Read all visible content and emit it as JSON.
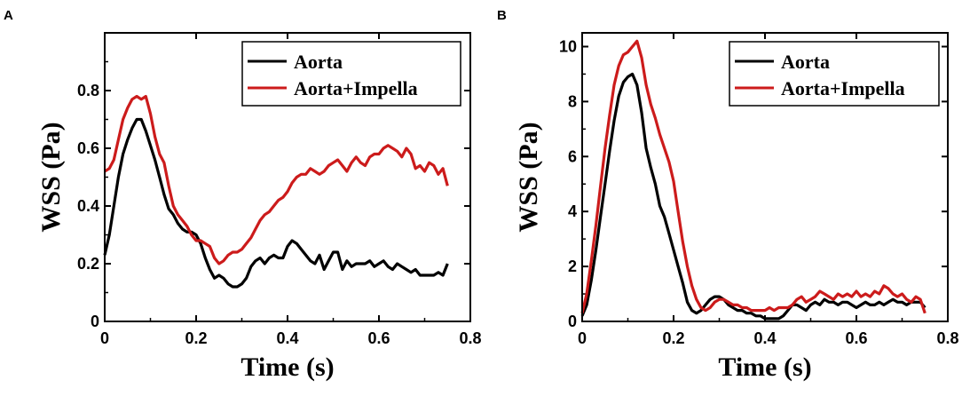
{
  "chart_data": [
    {
      "type": "line",
      "panel_label": "A",
      "xlabel": "Time (s)",
      "ylabel": "WSS (Pa)",
      "xlim": [
        0,
        0.8
      ],
      "ylim": [
        0,
        1.0
      ],
      "xticks": [
        0,
        0.2,
        0.4,
        0.6,
        0.8
      ],
      "xtick_labels": [
        "0",
        "0.2",
        "0.4",
        "0.6",
        "0.8"
      ],
      "yticks": [
        0,
        0.2,
        0.4,
        0.6,
        0.8
      ],
      "ytick_labels": [
        "0",
        "0.2",
        "0.4",
        "0.6",
        "0.8"
      ],
      "legend_position": "top-right",
      "series": [
        {
          "name": "Aorta",
          "color": "#000000",
          "x": [
            0,
            0.01,
            0.02,
            0.03,
            0.04,
            0.05,
            0.06,
            0.07,
            0.08,
            0.09,
            0.1,
            0.11,
            0.12,
            0.13,
            0.14,
            0.15,
            0.16,
            0.17,
            0.18,
            0.19,
            0.2,
            0.21,
            0.22,
            0.23,
            0.24,
            0.25,
            0.26,
            0.27,
            0.28,
            0.29,
            0.3,
            0.31,
            0.32,
            0.33,
            0.34,
            0.35,
            0.36,
            0.37,
            0.38,
            0.39,
            0.4,
            0.41,
            0.42,
            0.43,
            0.44,
            0.45,
            0.46,
            0.47,
            0.48,
            0.49,
            0.5,
            0.51,
            0.52,
            0.53,
            0.54,
            0.55,
            0.56,
            0.57,
            0.58,
            0.59,
            0.6,
            0.61,
            0.62,
            0.63,
            0.64,
            0.65,
            0.66,
            0.67,
            0.68,
            0.69,
            0.7,
            0.71,
            0.72,
            0.73,
            0.74,
            0.75
          ],
          "y": [
            0.23,
            0.3,
            0.4,
            0.5,
            0.58,
            0.63,
            0.67,
            0.7,
            0.7,
            0.66,
            0.61,
            0.56,
            0.5,
            0.44,
            0.39,
            0.37,
            0.34,
            0.32,
            0.31,
            0.31,
            0.3,
            0.27,
            0.22,
            0.18,
            0.15,
            0.16,
            0.15,
            0.13,
            0.12,
            0.12,
            0.13,
            0.15,
            0.19,
            0.21,
            0.22,
            0.2,
            0.22,
            0.23,
            0.22,
            0.22,
            0.26,
            0.28,
            0.27,
            0.25,
            0.23,
            0.21,
            0.2,
            0.23,
            0.18,
            0.21,
            0.24,
            0.24,
            0.18,
            0.21,
            0.19,
            0.2,
            0.2,
            0.2,
            0.21,
            0.19,
            0.2,
            0.21,
            0.19,
            0.18,
            0.2,
            0.19,
            0.18,
            0.17,
            0.18,
            0.16,
            0.16,
            0.16,
            0.16,
            0.17,
            0.16,
            0.2
          ]
        },
        {
          "name": "Aorta+Impella",
          "color": "#cc1b1b",
          "x": [
            0,
            0.01,
            0.02,
            0.03,
            0.04,
            0.05,
            0.06,
            0.07,
            0.08,
            0.09,
            0.1,
            0.11,
            0.12,
            0.13,
            0.14,
            0.15,
            0.16,
            0.17,
            0.18,
            0.19,
            0.2,
            0.21,
            0.22,
            0.23,
            0.24,
            0.25,
            0.26,
            0.27,
            0.28,
            0.29,
            0.3,
            0.31,
            0.32,
            0.33,
            0.34,
            0.35,
            0.36,
            0.37,
            0.38,
            0.39,
            0.4,
            0.41,
            0.42,
            0.43,
            0.44,
            0.45,
            0.46,
            0.47,
            0.48,
            0.49,
            0.5,
            0.51,
            0.52,
            0.53,
            0.54,
            0.55,
            0.56,
            0.57,
            0.58,
            0.59,
            0.6,
            0.61,
            0.62,
            0.63,
            0.64,
            0.65,
            0.66,
            0.67,
            0.68,
            0.69,
            0.7,
            0.71,
            0.72,
            0.73,
            0.74,
            0.75
          ],
          "y": [
            0.52,
            0.53,
            0.56,
            0.63,
            0.7,
            0.74,
            0.77,
            0.78,
            0.77,
            0.78,
            0.72,
            0.64,
            0.58,
            0.55,
            0.47,
            0.4,
            0.37,
            0.35,
            0.33,
            0.3,
            0.28,
            0.28,
            0.27,
            0.26,
            0.22,
            0.2,
            0.21,
            0.23,
            0.24,
            0.24,
            0.25,
            0.27,
            0.29,
            0.32,
            0.35,
            0.37,
            0.38,
            0.4,
            0.42,
            0.43,
            0.45,
            0.48,
            0.5,
            0.51,
            0.51,
            0.53,
            0.52,
            0.51,
            0.52,
            0.54,
            0.55,
            0.56,
            0.54,
            0.52,
            0.55,
            0.57,
            0.55,
            0.54,
            0.57,
            0.58,
            0.58,
            0.6,
            0.61,
            0.6,
            0.59,
            0.57,
            0.6,
            0.58,
            0.53,
            0.54,
            0.52,
            0.55,
            0.54,
            0.51,
            0.53,
            0.47
          ]
        }
      ]
    },
    {
      "type": "line",
      "panel_label": "B",
      "xlabel": "Time (s)",
      "ylabel": "WSS (Pa)",
      "xlim": [
        0,
        0.8
      ],
      "ylim": [
        0,
        10.5
      ],
      "xticks": [
        0,
        0.2,
        0.4,
        0.6,
        0.8
      ],
      "xtick_labels": [
        "0",
        "0.2",
        "0.4",
        "0.6",
        "0.8"
      ],
      "yticks": [
        0,
        2,
        4,
        6,
        8,
        10
      ],
      "ytick_labels": [
        "0",
        "2",
        "4",
        "6",
        "8",
        "10"
      ],
      "legend_position": "top-right",
      "series": [
        {
          "name": "Aorta",
          "color": "#000000",
          "x": [
            0,
            0.01,
            0.02,
            0.03,
            0.04,
            0.05,
            0.06,
            0.07,
            0.08,
            0.09,
            0.1,
            0.11,
            0.12,
            0.13,
            0.14,
            0.15,
            0.16,
            0.17,
            0.18,
            0.19,
            0.2,
            0.21,
            0.22,
            0.23,
            0.24,
            0.25,
            0.26,
            0.27,
            0.28,
            0.29,
            0.3,
            0.31,
            0.32,
            0.33,
            0.34,
            0.35,
            0.36,
            0.37,
            0.38,
            0.39,
            0.4,
            0.41,
            0.42,
            0.43,
            0.44,
            0.45,
            0.46,
            0.47,
            0.48,
            0.49,
            0.5,
            0.51,
            0.52,
            0.53,
            0.54,
            0.55,
            0.56,
            0.57,
            0.58,
            0.59,
            0.6,
            0.61,
            0.62,
            0.63,
            0.64,
            0.65,
            0.66,
            0.67,
            0.68,
            0.69,
            0.7,
            0.71,
            0.72,
            0.73,
            0.74,
            0.75
          ],
          "y": [
            0.2,
            0.6,
            1.5,
            2.6,
            3.8,
            5.0,
            6.2,
            7.3,
            8.2,
            8.7,
            8.9,
            9.0,
            8.6,
            7.6,
            6.3,
            5.6,
            5.0,
            4.2,
            3.8,
            3.2,
            2.6,
            2.0,
            1.4,
            0.7,
            0.4,
            0.3,
            0.4,
            0.6,
            0.8,
            0.9,
            0.9,
            0.8,
            0.6,
            0.5,
            0.4,
            0.4,
            0.3,
            0.3,
            0.2,
            0.2,
            0.1,
            0.1,
            0.1,
            0.1,
            0.2,
            0.4,
            0.6,
            0.6,
            0.5,
            0.4,
            0.6,
            0.7,
            0.6,
            0.8,
            0.7,
            0.7,
            0.6,
            0.7,
            0.7,
            0.6,
            0.5,
            0.6,
            0.7,
            0.6,
            0.6,
            0.7,
            0.6,
            0.7,
            0.8,
            0.7,
            0.7,
            0.6,
            0.7,
            0.7,
            0.7,
            0.5
          ]
        },
        {
          "name": "Aorta+Impella",
          "color": "#cc1b1b",
          "x": [
            0,
            0.01,
            0.02,
            0.03,
            0.04,
            0.05,
            0.06,
            0.07,
            0.08,
            0.09,
            0.1,
            0.11,
            0.12,
            0.13,
            0.14,
            0.15,
            0.16,
            0.17,
            0.18,
            0.19,
            0.2,
            0.21,
            0.22,
            0.23,
            0.24,
            0.25,
            0.26,
            0.27,
            0.28,
            0.29,
            0.3,
            0.31,
            0.32,
            0.33,
            0.34,
            0.35,
            0.36,
            0.37,
            0.38,
            0.39,
            0.4,
            0.41,
            0.42,
            0.43,
            0.44,
            0.45,
            0.46,
            0.47,
            0.48,
            0.49,
            0.5,
            0.51,
            0.52,
            0.53,
            0.54,
            0.55,
            0.56,
            0.57,
            0.58,
            0.59,
            0.6,
            0.61,
            0.62,
            0.63,
            0.64,
            0.65,
            0.66,
            0.67,
            0.68,
            0.69,
            0.7,
            0.71,
            0.72,
            0.73,
            0.74,
            0.75
          ],
          "y": [
            0.3,
            1.0,
            2.2,
            3.5,
            4.9,
            6.3,
            7.5,
            8.6,
            9.3,
            9.7,
            9.8,
            10.0,
            10.2,
            9.6,
            8.6,
            7.9,
            7.4,
            6.8,
            6.3,
            5.8,
            5.1,
            4.0,
            2.9,
            2.0,
            1.3,
            0.8,
            0.5,
            0.4,
            0.5,
            0.7,
            0.8,
            0.8,
            0.7,
            0.6,
            0.6,
            0.5,
            0.5,
            0.4,
            0.4,
            0.4,
            0.4,
            0.5,
            0.4,
            0.5,
            0.5,
            0.5,
            0.6,
            0.8,
            0.9,
            0.7,
            0.8,
            0.9,
            1.1,
            1.0,
            0.9,
            0.8,
            1.0,
            0.9,
            1.0,
            0.9,
            1.1,
            0.9,
            1.0,
            0.9,
            1.1,
            1.0,
            1.3,
            1.2,
            1.0,
            0.9,
            1.0,
            0.8,
            0.7,
            0.9,
            0.8,
            0.3
          ]
        }
      ]
    }
  ]
}
